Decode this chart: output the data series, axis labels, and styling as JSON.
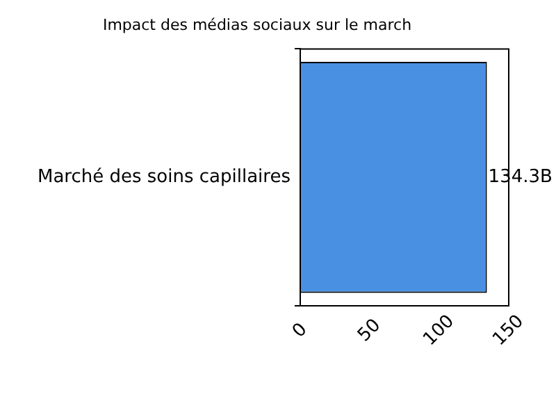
{
  "chart_data": {
    "type": "bar",
    "orientation": "horizontal",
    "title": "Impact des médias sociaux sur le march",
    "categories": [
      "Marché des soins capillaires"
    ],
    "values": [
      134.3
    ],
    "value_labels": [
      "134.3B"
    ],
    "color": "#4a90e2",
    "xlim": [
      0,
      150
    ],
    "xticks": [
      0,
      50,
      100,
      150
    ],
    "grid": false,
    "legend": false
  }
}
